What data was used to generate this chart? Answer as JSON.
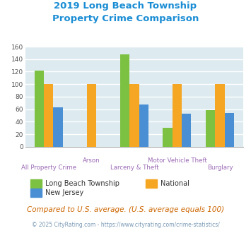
{
  "title_line1": "2019 Long Beach Township",
  "title_line2": "Property Crime Comparison",
  "categories": [
    "All Property Crime",
    "Arson",
    "Larceny & Theft",
    "Motor Vehicle Theft",
    "Burglary"
  ],
  "series": {
    "Long Beach Township": [
      122,
      0,
      148,
      30,
      59
    ],
    "National": [
      100,
      100,
      100,
      100,
      100
    ],
    "New Jersey": [
      63,
      0,
      67,
      53,
      54
    ]
  },
  "colors": {
    "Long Beach Township": "#7dc142",
    "National": "#f5a623",
    "New Jersey": "#4a8fd4"
  },
  "ylim": [
    0,
    160
  ],
  "yticks": [
    0,
    20,
    40,
    60,
    80,
    100,
    120,
    140,
    160
  ],
  "xlabel_color": "#9b6ab5",
  "title_color": "#1a8dd4",
  "background_color": "#ddeaf0",
  "grid_color": "#ffffff",
  "note": "Compared to U.S. average. (U.S. average equals 100)",
  "note_color": "#cc6600",
  "footer": "© 2025 CityRating.com - https://www.cityrating.com/crime-statistics/",
  "footer_color": "#7a9ab5",
  "row1_indices": [
    0,
    2,
    4
  ],
  "row2_indices": [
    1,
    3
  ]
}
